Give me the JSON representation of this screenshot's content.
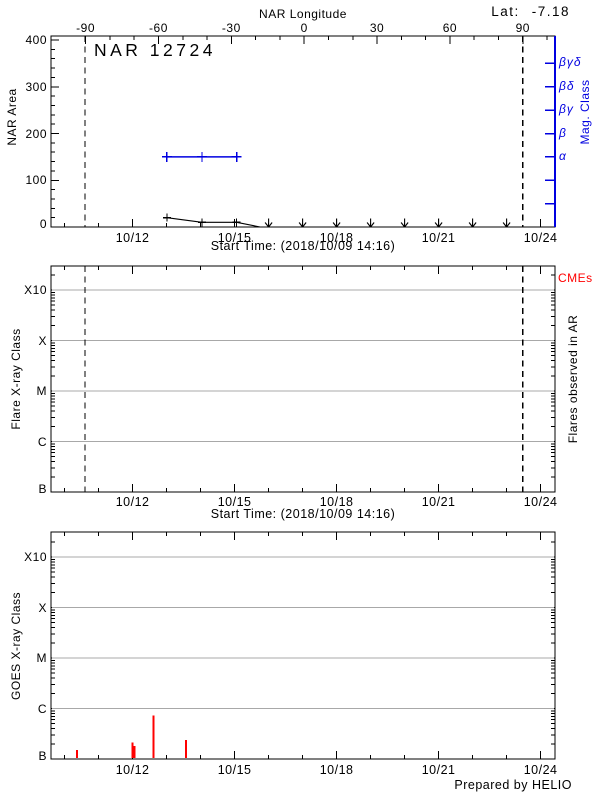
{
  "chart_data": [
    {
      "id": "nar_area_panel",
      "type": "line",
      "title": "NAR 12724",
      "ylabel": "NAR Area",
      "ylim": [
        0,
        400
      ],
      "yticks": [
        0,
        100,
        200,
        300,
        400
      ],
      "y_minor_step": 20,
      "top_axis": {
        "title": "NAR Longitude",
        "ticks": [
          -90,
          -60,
          -30,
          0,
          30,
          60,
          90
        ],
        "minor_step": 10,
        "lat_label": "Lat:",
        "lat_value": "-7.18"
      },
      "right_axis": {
        "label": "Mag. Class",
        "tick_labels": [
          "βγδ",
          "βδ",
          "βγ",
          "β",
          "α",
          "",
          ""
        ],
        "tick_values": [
          350,
          300,
          250,
          200,
          150,
          100,
          50
        ]
      },
      "xlabel": "Start Time: (2018/10/09 14:16)",
      "xticks": {
        "labels": [
          "10/12",
          "10/15",
          "10/18",
          "10/21",
          "10/24"
        ],
        "t_days": [
          2.4,
          5.4,
          8.4,
          11.4,
          14.4
        ]
      },
      "x_minor": {
        "first_t": 0.4,
        "step": 1,
        "count": 15
      },
      "xrange_days": [
        0,
        14.82
      ],
      "limb_crossings_t": [
        1.0,
        13.88
      ],
      "series": [
        {
          "name": "area",
          "color": "#000000",
          "marker": "plus",
          "points": [
            {
              "date": "10/13",
              "t_days": 3.41,
              "value": 20
            },
            {
              "date": "10/14",
              "t_days": 4.44,
              "value": 10
            },
            {
              "date": "10/15",
              "t_days": 5.46,
              "value": 10
            }
          ],
          "decline_to_zero_t": 6.15,
          "zero_arrow_t_days": [
            6.4,
            7.4,
            8.4,
            9.4,
            10.4,
            11.4,
            12.4,
            13.4
          ]
        },
        {
          "name": "mag-class",
          "color": "#0000e0",
          "marker": "plus",
          "class_label": "α",
          "points": [
            {
              "date": "10/13",
              "t_days": 3.41,
              "value": 150
            },
            {
              "date": "10/14",
              "t_days": 4.44,
              "value": 150
            },
            {
              "date": "10/15",
              "t_days": 5.46,
              "value": 150
            }
          ]
        }
      ]
    },
    {
      "id": "flare_panel",
      "type": "line",
      "ylabel": "Flare X-ray Class",
      "yticks": [
        "X10",
        "X",
        "M",
        "C",
        "B"
      ],
      "right_label_top": "CMEs",
      "right_label": "Flares observed in AR",
      "xlabel": "Start Time: (2018/10/09 14:16)",
      "xticks": {
        "labels": [
          "10/12",
          "10/15",
          "10/18",
          "10/21",
          "10/24"
        ],
        "t_days": [
          2.4,
          5.4,
          8.4,
          11.4,
          14.4
        ]
      },
      "x_minor": {
        "first_t": 0.4,
        "step": 1,
        "count": 15
      },
      "limb_crossings_t": [
        1.0,
        13.88
      ],
      "flares": [],
      "cmes": []
    },
    {
      "id": "goes_panel",
      "type": "bar",
      "ylabel": "GOES X-ray Class",
      "yticks": [
        "X10",
        "X",
        "M",
        "C",
        "B"
      ],
      "xticks": {
        "labels": [
          "10/12",
          "10/15",
          "10/18",
          "10/21",
          "10/24"
        ],
        "t_days": [
          2.4,
          5.4,
          8.4,
          11.4,
          14.4
        ]
      },
      "x_minor": {
        "first_t": 0.4,
        "step": 1,
        "count": 15
      },
      "flare_color": "#ff0000",
      "flares": [
        {
          "t_days": 0.77,
          "peak_class": "B1.5"
        },
        {
          "t_days": 2.4,
          "peak_class": "B2.1"
        },
        {
          "t_days": 2.46,
          "peak_class": "B1.8"
        },
        {
          "t_days": 3.01,
          "peak_class": "B7.2"
        },
        {
          "t_days": 3.97,
          "peak_class": "B2.4"
        }
      ],
      "credit": "Prepared by HELIO"
    }
  ],
  "colors": {
    "accent_blue": "#0000e0",
    "flare_red": "#ff0000",
    "grid_gray": "#a8a8a8",
    "axis_black": "#000000"
  }
}
